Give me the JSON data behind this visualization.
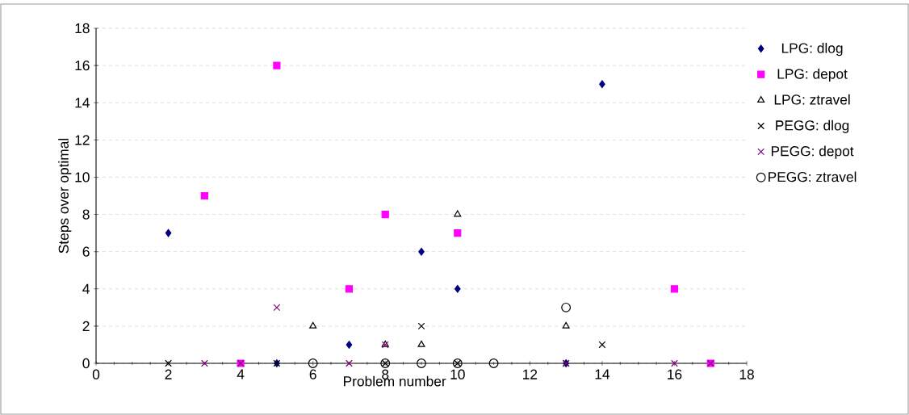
{
  "chart_data": {
    "type": "scatter",
    "xlabel": "Problem number",
    "ylabel": "Steps over optimal",
    "xlim": [
      0,
      18
    ],
    "xticks": [
      0,
      2,
      4,
      6,
      8,
      10,
      12,
      14,
      16,
      18
    ],
    "ylim": [
      0,
      18
    ],
    "yticks": [
      0,
      2,
      4,
      6,
      8,
      10,
      12,
      14,
      16,
      18
    ],
    "grid": "y",
    "legend": "right",
    "series": [
      {
        "name": "LPG: dlog",
        "color": "#000080",
        "marker": "diamond",
        "x": [
          2,
          5,
          7,
          9,
          10,
          13,
          14
        ],
        "values": [
          7,
          0,
          1,
          6,
          4,
          0,
          15
        ]
      },
      {
        "name": "LPG: depot",
        "color": "#ff00ff",
        "marker": "square",
        "x": [
          3,
          4,
          5,
          7,
          8,
          10,
          16,
          17
        ],
        "values": [
          9,
          0,
          16,
          4,
          8,
          7,
          4,
          0
        ]
      },
      {
        "name": "LPG: ztravel",
        "color": "#000000",
        "marker": "triangle",
        "x": [
          6,
          8,
          9,
          10,
          13
        ],
        "values": [
          2,
          1,
          1,
          8,
          2
        ]
      },
      {
        "name": "PEGG: dlog",
        "color": "#000000",
        "marker": "cross",
        "x": [
          2,
          5,
          8,
          9,
          10,
          13,
          14
        ],
        "values": [
          0,
          0,
          0,
          2,
          0,
          0,
          1
        ]
      },
      {
        "name": "PEGG: depot",
        "color": "#800080",
        "marker": "cross",
        "x": [
          3,
          4,
          5,
          7,
          8,
          13,
          16,
          17
        ],
        "values": [
          0,
          0,
          3,
          0,
          1,
          0,
          0,
          0
        ]
      },
      {
        "name": "PEGG: ztravel",
        "color": "#000000",
        "marker": "circle",
        "x": [
          6,
          8,
          9,
          10,
          11,
          13
        ],
        "values": [
          0,
          0,
          0,
          0,
          0,
          3
        ]
      }
    ]
  }
}
